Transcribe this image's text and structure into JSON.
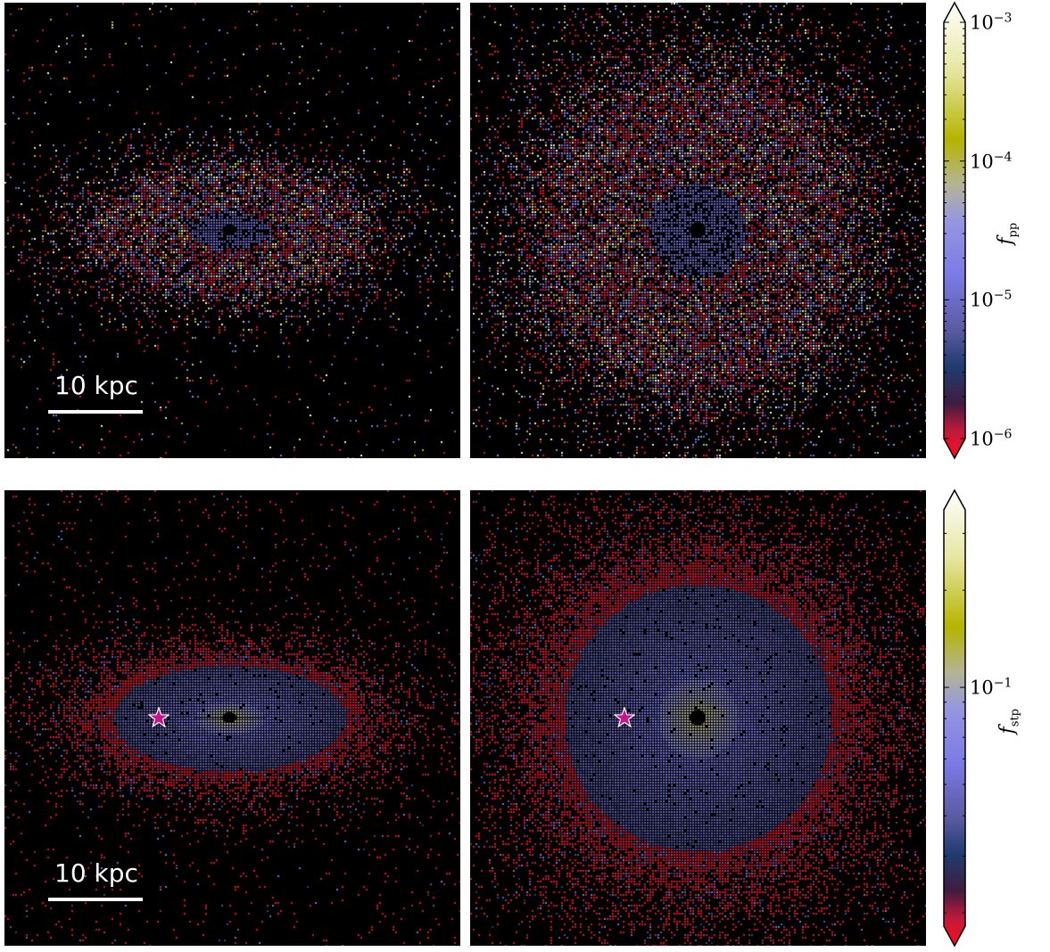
{
  "panels": [
    {
      "id": "top-left",
      "scale_label": "10 kpc",
      "star": false,
      "shape": "edge-on",
      "variant": "pp"
    },
    {
      "id": "top-right",
      "scale_label": "",
      "star": false,
      "shape": "face-on",
      "variant": "pp"
    },
    {
      "id": "bottom-left",
      "scale_label": "10 kpc",
      "star": true,
      "shape": "edge-on",
      "variant": "stp"
    },
    {
      "id": "bottom-right",
      "scale_label": "",
      "star": true,
      "shape": "face-on",
      "variant": "stp"
    }
  ],
  "colorbars": {
    "top": {
      "label_main": "f",
      "label_sub": "pp",
      "ticks": [
        {
          "base": "10",
          "exp": "−3",
          "value": 0.001
        },
        {
          "base": "10",
          "exp": "−4",
          "value": 0.0001
        },
        {
          "base": "10",
          "exp": "−5",
          "value": 1e-05
        },
        {
          "base": "10",
          "exp": "−6",
          "value": 1e-06
        }
      ],
      "log_range": [
        -6,
        -3
      ]
    },
    "bottom": {
      "label_main": "f",
      "label_sub": "stp",
      "ticks": [
        {
          "base": "10",
          "exp": "−1",
          "value": 0.1
        }
      ]
    }
  },
  "colors": {
    "colormap": [
      "#ff0a1e",
      "#c01a3a",
      "#401c40",
      "#1e3c6e",
      "#5a5aa0",
      "#7a7ae6",
      "#9696e0",
      "#b4b496",
      "#b4b400",
      "#e6e6a0",
      "#ffffff"
    ],
    "star": "#c8148c"
  }
}
